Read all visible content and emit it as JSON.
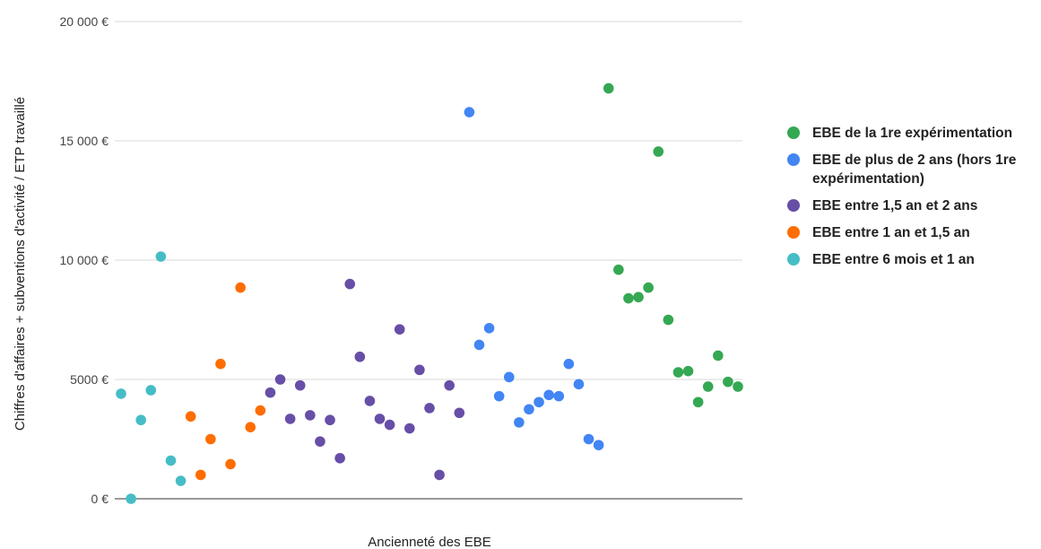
{
  "chart_data": {
    "type": "scatter",
    "title": "",
    "xlabel": "Ancienneté des EBE",
    "ylabel": "Chiffres d'affaires + subventions d'activité / ETP travaillé",
    "ylim": [
      0,
      20000
    ],
    "yticks": [
      {
        "value": 0,
        "label": "0 €"
      },
      {
        "value": 5000,
        "label": "5000 €"
      },
      {
        "value": 10000,
        "label": "10 000 €"
      },
      {
        "value": 15000,
        "label": "15 000 €"
      },
      {
        "value": 20000,
        "label": "20 000 €"
      }
    ],
    "xlim": [
      0,
      62
    ],
    "grid": true,
    "legend_position": "right",
    "series": [
      {
        "name": "EBE de la 1re expérimentation",
        "color": "#34a853",
        "x": [
          49,
          50,
          51,
          52,
          53,
          54,
          55,
          56,
          57,
          58,
          59,
          60,
          61,
          62
        ],
        "y": [
          17200,
          9600,
          8400,
          8450,
          8850,
          14550,
          7500,
          5300,
          5350,
          4050,
          4700,
          6000,
          4900,
          4700
        ]
      },
      {
        "name": "EBE de plus de 2 ans (hors 1re expérimentation)",
        "color": "#4285f4",
        "x": [
          35,
          36,
          37,
          38,
          39,
          40,
          41,
          42,
          43,
          44,
          45,
          46,
          47,
          48
        ],
        "y": [
          16200,
          6450,
          7150,
          4300,
          5100,
          3200,
          3750,
          4050,
          4350,
          4300,
          5650,
          4800,
          2500,
          2250
        ]
      },
      {
        "name": "EBE entre 1,5 an et 2 ans",
        "color": "#674ea7",
        "x": [
          15,
          16,
          17,
          18,
          19,
          20,
          21,
          22,
          23,
          24,
          25,
          26,
          27,
          28,
          29,
          30,
          31,
          32,
          33,
          34
        ],
        "y": [
          4450,
          5000,
          3350,
          4750,
          3500,
          2400,
          3300,
          1700,
          9000,
          5950,
          4100,
          3350,
          3100,
          7100,
          2950,
          5400,
          3800,
          1000,
          4750,
          3600
        ]
      },
      {
        "name": "EBE entre 1 an et 1,5 an",
        "color": "#ff6d01",
        "x": [
          7,
          8,
          9,
          10,
          11,
          12,
          13,
          14
        ],
        "y": [
          3450,
          1000,
          2500,
          5650,
          1450,
          8850,
          3000,
          3700
        ]
      },
      {
        "name": "EBE entre 6 mois et 1 an",
        "color": "#46bdc6",
        "x": [
          0,
          1,
          2,
          3,
          4,
          5,
          6
        ],
        "y": [
          4400,
          0,
          3300,
          4550,
          10150,
          1600,
          750
        ]
      }
    ]
  }
}
